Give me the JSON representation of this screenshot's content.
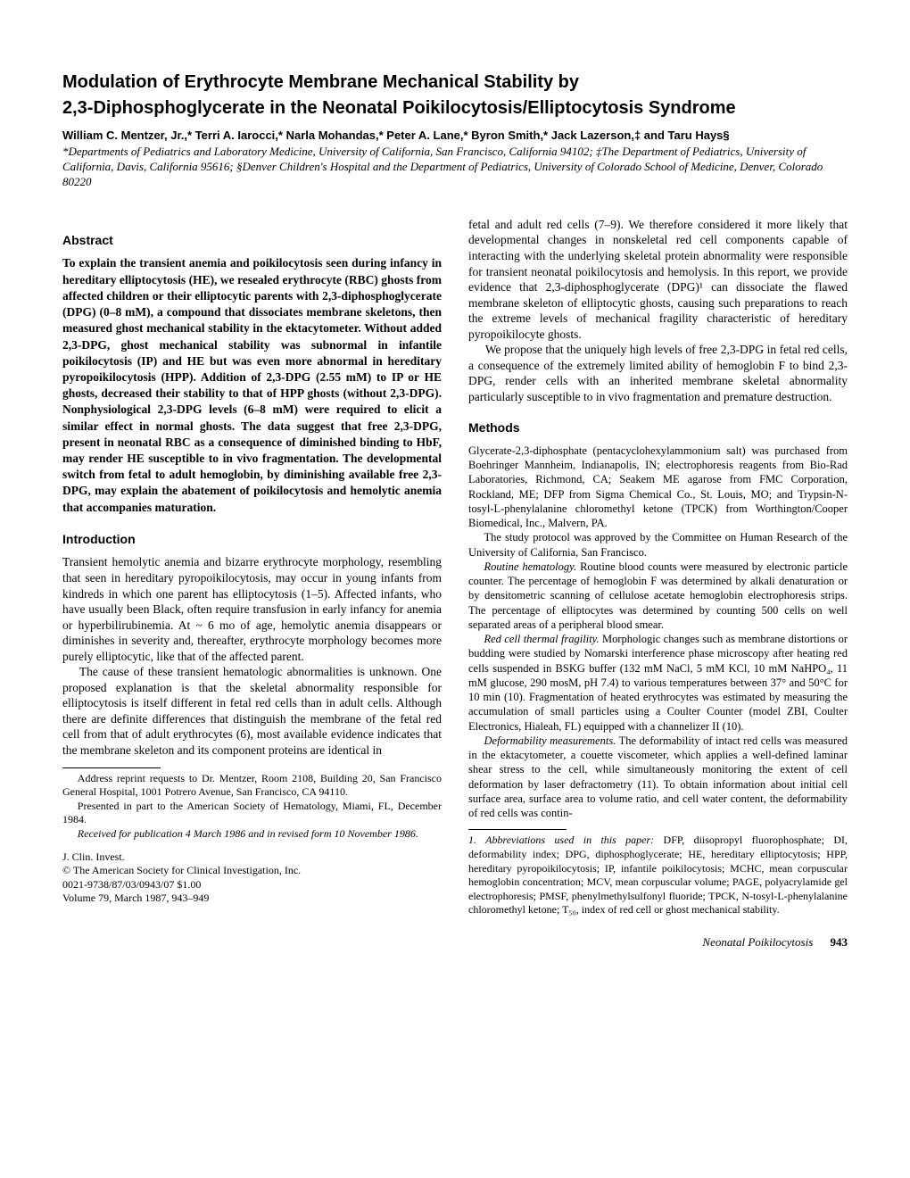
{
  "title_line1": "Modulation of Erythrocyte Membrane Mechanical Stability by",
  "title_line2": "2,3-Diphosphoglycerate in the Neonatal Poikilocytosis/Elliptocytosis Syndrome",
  "authors": "William C. Mentzer, Jr.,* Terri A. Iarocci,* Narla Mohandas,* Peter A. Lane,* Byron Smith,* Jack Lazerson,‡ and Taru Hays§",
  "affiliations": "*Departments of Pediatrics and Laboratory Medicine, University of California, San Francisco, California 94102; ‡The Department of Pediatrics, University of California, Davis, California 95616; §Denver Children's Hospital and the Department of Pediatrics, University of Colorado School of Medicine, Denver, Colorado 80220",
  "abstract_heading": "Abstract",
  "abstract_text": "To explain the transient anemia and poikilocytosis seen during infancy in hereditary elliptocytosis (HE), we resealed erythrocyte (RBC) ghosts from affected children or their elliptocytic parents with 2,3-diphosphoglycerate (DPG) (0–8 mM), a compound that dissociates membrane skeletons, then measured ghost mechanical stability in the ektacytometer. Without added 2,3-DPG, ghost mechanical stability was subnormal in infantile poikilocytosis (IP) and HE but was even more abnormal in hereditary pyropoikilocytosis (HPP). Addition of 2,3-DPG (2.55 mM) to IP or HE ghosts, decreased their stability to that of HPP ghosts (without 2,3-DPG). Nonphysiological 2,3-DPG levels (6–8 mM) were required to elicit a similar effect in normal ghosts. The data suggest that free 2,3-DPG, present in neonatal RBC as a consequence of diminished binding to HbF, may render HE susceptible to in vivo fragmentation. The developmental switch from fetal to adult hemoglobin, by diminishing available free 2,3-DPG, may explain the abatement of poikilocytosis and hemolytic anemia that accompanies maturation.",
  "introduction_heading": "Introduction",
  "intro_p1": "Transient hemolytic anemia and bizarre erythrocyte morphology, resembling that seen in hereditary pyropoikilocytosis, may occur in young infants from kindreds in which one parent has elliptocytosis (1–5). Affected infants, who have usually been Black, often require transfusion in early infancy for anemia or hyperbilirubinemia. At ~ 6 mo of age, hemolytic anemia disappears or diminishes in severity and, thereafter, erythrocyte morphology becomes more purely elliptocytic, like that of the affected parent.",
  "intro_p2": "The cause of these transient hematologic abnormalities is unknown. One proposed explanation is that the skeletal abnormality responsible for elliptocytosis is itself different in fetal red cells than in adult cells. Although there are definite differences that distinguish the membrane of the fetal red cell from that of adult erythrocytes (6), most available evidence indicates that the membrane skeleton and its component proteins are identical in",
  "reprint_p1": "Address reprint requests to Dr. Mentzer, Room 2108, Building 20, San Francisco General Hospital, 1001 Potrero Avenue, San Francisco, CA 94110.",
  "reprint_p2": "Presented in part to the American Society of Hematology, Miami, FL, December 1984.",
  "reprint_p3": "Received for publication 4 March 1986 and in revised form 10 November 1986.",
  "journal_line1": "J. Clin. Invest.",
  "journal_line2": "© The American Society for Clinical Investigation, Inc.",
  "journal_line3": "0021-9738/87/03/0943/07   $1.00",
  "journal_line4": "Volume 79, March 1987, 943–949",
  "col2_p1": "fetal and adult red cells (7–9). We therefore considered it more likely that developmental changes in nonskeletal red cell components capable of interacting with the underlying skeletal protein abnormality were responsible for transient neonatal poikilocytosis and hemolysis. In this report, we provide evidence that 2,3-diphosphoglycerate (DPG)¹ can dissociate the flawed membrane skeleton of elliptocytic ghosts, causing such preparations to reach the extreme levels of mechanical fragility characteristic of hereditary pyropoikilocyte ghosts.",
  "col2_p2": "We propose that the uniquely high levels of free 2,3-DPG in fetal red cells, a consequence of the extremely limited ability of hemoglobin F to bind 2,3-DPG, render cells with an inherited membrane skeletal abnormality particularly susceptible to in vivo fragmentation and premature destruction.",
  "methods_heading": "Methods",
  "methods_p1": "Glycerate-2,3-diphosphate (pentacyclohexylammonium salt) was purchased from Boehringer Mannheim, Indianapolis, IN; electrophoresis reagents from Bio-Rad Laboratories, Richmond, CA; Seakem ME agarose from FMC Corporation, Rockland, ME; DFP from Sigma Chemical Co., St. Louis, MO; and Trypsin-N-tosyl-L-phenylalanine chloromethyl ketone (TPCK) from Worthington/Cooper Biomedical, Inc., Malvern, PA.",
  "methods_p2": "The study protocol was approved by the Committee on Human Research of the University of California, San Francisco.",
  "methods_p3_label": "Routine hematology.",
  "methods_p3": " Routine blood counts were measured by electronic particle counter. The percentage of hemoglobin F was determined by alkali denaturation or by densitometric scanning of cellulose acetate hemoglobin electrophoresis strips. The percentage of elliptocytes was determined by counting 500 cells on well separated areas of a peripheral blood smear.",
  "methods_p4_label": "Red cell thermal fragility.",
  "methods_p4": " Morphologic changes such as membrane distortions or budding were studied by Nomarski interference phase microscopy after heating red cells suspended in BSKG buffer (132 mM NaCl, 5 mM KCl, 10 mM NaHPO₄, 11 mM glucose, 290 mosM, pH 7.4) to various temperatures between 37° and 50°C for 10 min (10). Fragmentation of heated erythrocytes was estimated by measuring the accumulation of small particles using a Coulter Counter (model ZBI, Coulter Electronics, Hialeah, FL) equipped with a channelizer II (10).",
  "methods_p5_label": "Deformability measurements.",
  "methods_p5": " The deformability of intact red cells was measured in the ektacytometer, a couette viscometer, which applies a well-defined laminar shear stress to the cell, while simultaneously monitoring the extent of cell deformation by laser defractometry (11). To obtain information about initial cell surface area, surface area to volume ratio, and cell water content, the deformability of red cells was contin-",
  "abbrev_label": "1. Abbreviations used in this paper:",
  "abbrev_text": " DFP, diisopropyl fluorophosphate; DI, deformability index; DPG, diphosphoglycerate; HE, hereditary elliptocytosis; HPP, hereditary pyropoikilocytosis; IP, infantile poikilocytosis; MCHC, mean corpuscular hemoglobin concentration; MCV, mean corpuscular volume; PAGE, polyacrylamide gel electrophoresis; PMSF, phenylmethylsulfonyl fluoride; TPCK, N-tosyl-L-phenylalanine chloromethyl ketone; T₅₀, index of red cell or ghost mechanical stability.",
  "footer_title": "Neonatal Poikilocytosis",
  "footer_page": "943"
}
